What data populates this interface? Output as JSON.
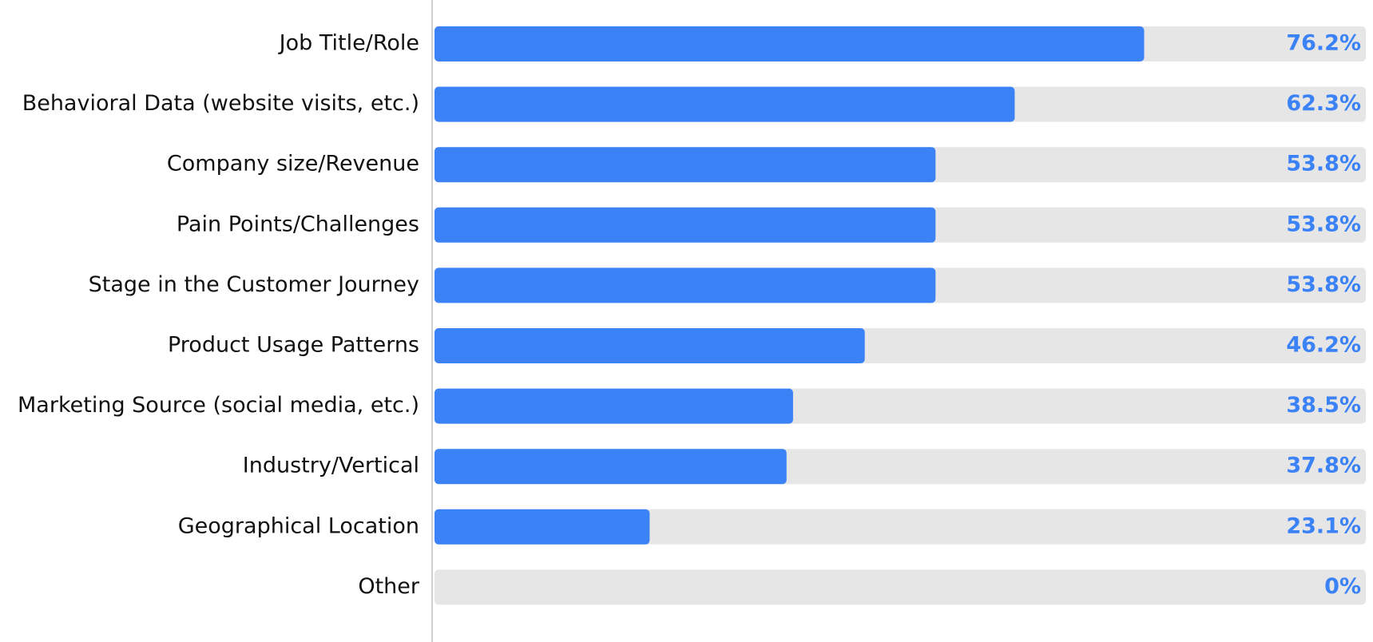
{
  "chart_data": {
    "type": "bar",
    "orientation": "horizontal",
    "categories": [
      "Job Title/Role",
      "Behavioral Data (website visits, etc.)",
      "Company size/Revenue",
      "Pain Points/Challenges",
      "Stage in the Customer Journey",
      "Product Usage Patterns",
      "Marketing Source (social media, etc.)",
      "Industry/Vertical",
      "Geographical Location",
      "Other"
    ],
    "values": [
      76.2,
      62.3,
      53.8,
      53.8,
      53.8,
      46.2,
      38.5,
      37.8,
      23.1,
      0
    ],
    "value_labels": [
      "76.2%",
      "62.3%",
      "53.8%",
      "53.8%",
      "53.8%",
      "46.2%",
      "38.5%",
      "37.8%",
      "23.1%",
      "0%"
    ],
    "color": "#3b82f6",
    "track_color": "#e6e6e6",
    "xlim": [
      0,
      100
    ]
  }
}
